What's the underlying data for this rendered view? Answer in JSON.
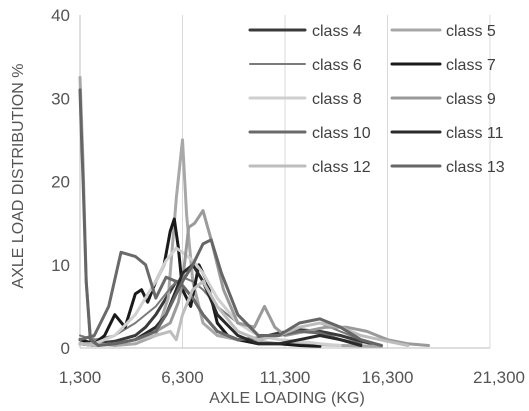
{
  "chart_data": {
    "type": "line",
    "xlabel": "AXLE LOADING (KG)",
    "ylabel": "AXLE LOAD DISTRIBUTION %",
    "xlim": [
      1300,
      21300
    ],
    "ylim": [
      0,
      40
    ],
    "xticks": [
      1300,
      6300,
      11300,
      16300,
      21300
    ],
    "xtick_labels": [
      "1,300",
      "6,300",
      "11,300",
      "16,300",
      "21,300"
    ],
    "yticks": [
      0,
      10,
      20,
      30,
      40
    ],
    "ytick_labels": [
      "0",
      "10",
      "20",
      "30",
      "40"
    ],
    "grid": "vertical",
    "legend_position": "top-right",
    "series": [
      {
        "name": "class 4",
        "color": "#3a3a3a",
        "width": 3,
        "x": [
          1300,
          2000,
          3000,
          4000,
          4500,
          5000,
          5500,
          6000,
          6300,
          6800,
          7300,
          8000,
          9000,
          10000,
          11000,
          12000,
          13000,
          14000,
          15000,
          16000
        ],
        "y": [
          1.0,
          0.5,
          0.8,
          1.5,
          2.5,
          4.0,
          6.0,
          8.0,
          7.5,
          6.0,
          4.0,
          2.0,
          1.0,
          1.2,
          1.8,
          2.2,
          2.0,
          1.5,
          0.8,
          0.3
        ]
      },
      {
        "name": "class 5",
        "color": "#a8a8a8",
        "width": 3,
        "x": [
          1300,
          1450,
          1600,
          1800,
          2200,
          3000,
          4000,
          5000,
          5600,
          6000,
          6300,
          6500,
          6800,
          7300,
          8000,
          9000,
          10000,
          11000,
          12000,
          14000,
          16000
        ],
        "y": [
          32.5,
          22.0,
          8.0,
          1.5,
          0.5,
          0.3,
          0.5,
          1.5,
          6.0,
          18.0,
          25.0,
          16.0,
          8.0,
          3.0,
          1.5,
          1.0,
          0.8,
          0.5,
          0.5,
          0.3,
          0.2
        ]
      },
      {
        "name": "class 6",
        "color": "#7a7a7a",
        "width": 2,
        "x": [
          1300,
          2000,
          3000,
          4000,
          5000,
          5800,
          6300,
          6800,
          7300,
          8000,
          9000,
          10000,
          11000,
          12000,
          13000,
          14000,
          15000
        ],
        "y": [
          1.5,
          1.0,
          1.5,
          3.0,
          5.0,
          7.5,
          8.5,
          8.0,
          7.0,
          5.0,
          3.0,
          1.5,
          1.5,
          2.5,
          3.0,
          2.0,
          1.0
        ]
      },
      {
        "name": "class 7",
        "color": "#1a1a1a",
        "width": 3,
        "x": [
          1300,
          2000,
          2500,
          3000,
          3500,
          4000,
          4300,
          4600,
          5000,
          5400,
          5700,
          5900,
          6100,
          6300,
          6700,
          7100,
          7500,
          8000,
          8500,
          9000,
          10000,
          11000,
          12000,
          13000
        ],
        "y": [
          1.0,
          0.5,
          1.5,
          4.0,
          2.5,
          6.5,
          7.0,
          5.5,
          8.0,
          10.0,
          14.0,
          15.5,
          12.0,
          7.0,
          5.0,
          10.0,
          8.0,
          3.0,
          1.5,
          1.0,
          0.5,
          0.5,
          0.3,
          0.2
        ]
      },
      {
        "name": "class 8",
        "color": "#cfcfcf",
        "width": 3,
        "x": [
          1300,
          2000,
          3000,
          4000,
          5000,
          5500,
          6000,
          6300,
          6800,
          7300,
          8000,
          9000,
          10000,
          11000,
          12000,
          13000,
          14000
        ],
        "y": [
          0.5,
          0.5,
          1.5,
          4.0,
          8.0,
          10.5,
          12.0,
          11.5,
          10.5,
          9.0,
          6.0,
          3.0,
          1.5,
          1.0,
          0.8,
          0.5,
          0.3
        ]
      },
      {
        "name": "class 9",
        "color": "#9a9a9a",
        "width": 3,
        "x": [
          1300,
          2000,
          3000,
          4000,
          5000,
          5700,
          6100,
          6300,
          6600,
          6900,
          7300,
          7700,
          8300,
          9000,
          9800,
          10300,
          10800,
          11300,
          12300,
          13300,
          14300,
          15300,
          16300,
          17300,
          18300
        ],
        "y": [
          0.5,
          0.3,
          0.5,
          1.0,
          2.0,
          3.0,
          5.5,
          8.0,
          14.5,
          15.0,
          16.5,
          13.0,
          7.0,
          3.0,
          2.5,
          5.0,
          2.5,
          1.5,
          2.0,
          2.5,
          2.5,
          2.0,
          1.0,
          0.5,
          0.3
        ]
      },
      {
        "name": "class 10",
        "color": "#6a6a6a",
        "width": 3,
        "x": [
          1300,
          2000,
          2700,
          3300,
          4000,
          4500,
          5000,
          5500,
          6000,
          6300,
          6800,
          7300,
          8000,
          9000,
          10000,
          11000,
          12000,
          13000,
          14000,
          15000
        ],
        "y": [
          1.0,
          1.5,
          5.0,
          11.5,
          11.0,
          10.0,
          6.0,
          8.5,
          8.0,
          7.5,
          6.0,
          4.0,
          2.0,
          1.0,
          1.2,
          1.5,
          2.0,
          1.8,
          1.0,
          0.5
        ]
      },
      {
        "name": "class 11",
        "color": "#2a2a2a",
        "width": 3,
        "x": [
          1300,
          2000,
          3000,
          4000,
          5000,
          5500,
          6000,
          6300,
          6800,
          7300,
          8000,
          9000,
          10000,
          11000,
          12000,
          13000,
          14000,
          15000
        ],
        "y": [
          0.5,
          0.3,
          0.5,
          1.0,
          2.5,
          4.0,
          7.0,
          9.0,
          10.0,
          8.0,
          4.0,
          1.5,
          0.5,
          0.5,
          1.0,
          1.5,
          1.0,
          0.3
        ]
      },
      {
        "name": "class 12",
        "color": "#bdbdbd",
        "width": 3,
        "x": [
          1300,
          2000,
          3000,
          4000,
          5000,
          5700,
          6000,
          6300,
          6800,
          7300,
          8000,
          9000,
          10000,
          11000,
          12000,
          13000,
          14000,
          15000,
          16300,
          17300
        ],
        "y": [
          0.5,
          0.3,
          0.5,
          1.0,
          1.5,
          2.0,
          1.0,
          4.0,
          7.0,
          8.0,
          5.0,
          2.0,
          1.0,
          1.5,
          2.5,
          3.0,
          2.5,
          1.5,
          0.8,
          0.3
        ]
      },
      {
        "name": "class 13",
        "color": "#666666",
        "width": 3,
        "x": [
          1300,
          1350,
          1450,
          1600,
          1800,
          2200,
          3000,
          4000,
          5000,
          5500,
          6000,
          6300,
          6800,
          7300,
          7700,
          8200,
          9000,
          10000,
          11000,
          12000,
          13000,
          14000,
          15000,
          16000
        ],
        "y": [
          31.0,
          27.0,
          20.0,
          8.0,
          1.0,
          0.3,
          0.5,
          1.0,
          2.0,
          4.0,
          6.5,
          8.0,
          10.0,
          12.5,
          13.0,
          9.0,
          4.0,
          1.5,
          1.5,
          3.0,
          3.5,
          2.5,
          1.0,
          0.3
        ]
      }
    ]
  }
}
